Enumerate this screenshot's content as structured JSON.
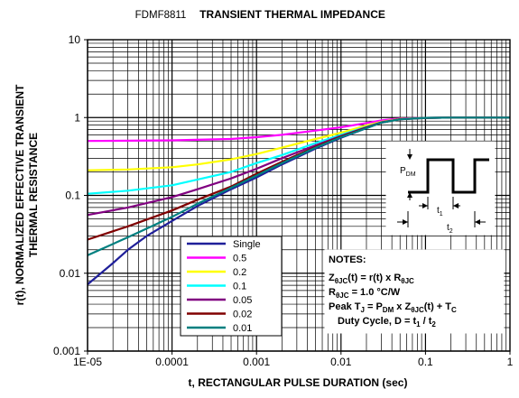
{
  "chart_data": {
    "type": "line",
    "title_part_number": "FDMF8811",
    "title": "TRANSIENT THERMAL IMPEDANCE",
    "xlabel": "t, RECTANGULAR PULSE DURATION (sec)",
    "ylabel_line1": "r(t), NORMALIZED EFFECTIVE TRANSIENT",
    "ylabel_line2": "THERMAL RESISTANCE",
    "x_scale": "log",
    "y_scale": "log",
    "xlim": [
      1e-05,
      1
    ],
    "ylim": [
      0.001,
      10
    ],
    "grid": true,
    "x_ticks": [
      {
        "value": 1e-05,
        "label": "1E-05"
      },
      {
        "value": 0.0001,
        "label": "0.0001"
      },
      {
        "value": 0.001,
        "label": "0.001"
      },
      {
        "value": 0.01,
        "label": "0.01"
      },
      {
        "value": 0.1,
        "label": "0.1"
      },
      {
        "value": 1,
        "label": "1"
      }
    ],
    "y_ticks": [
      {
        "value": 0.001,
        "label": "0.001"
      },
      {
        "value": 0.01,
        "label": "0.01"
      },
      {
        "value": 0.1,
        "label": "0.1"
      },
      {
        "value": 1,
        "label": "1"
      },
      {
        "value": 10,
        "label": "10"
      }
    ],
    "legend_position": "bottom-center",
    "series": [
      {
        "name": "Single",
        "color": "#1f1f99",
        "points": [
          [
            1e-05,
            0.0072
          ],
          [
            2e-05,
            0.0135
          ],
          [
            3e-05,
            0.02
          ],
          [
            5e-05,
            0.03
          ],
          [
            0.0001,
            0.047
          ],
          [
            0.0002,
            0.073
          ],
          [
            0.0005,
            0.12
          ],
          [
            0.001,
            0.17
          ],
          [
            0.002,
            0.25
          ],
          [
            0.005,
            0.4
          ],
          [
            0.01,
            0.55
          ],
          [
            0.02,
            0.73
          ],
          [
            0.03,
            0.86
          ],
          [
            0.05,
            0.96
          ],
          [
            0.1,
            0.99
          ],
          [
            0.2,
            1.0
          ],
          [
            1,
            1.0
          ]
        ]
      },
      {
        "name": "0.5",
        "color": "#ff00ff",
        "points": [
          [
            1e-05,
            0.5
          ],
          [
            0.0001,
            0.51
          ],
          [
            0.0005,
            0.53
          ],
          [
            0.001,
            0.56
          ],
          [
            0.002,
            0.6
          ],
          [
            0.005,
            0.68
          ],
          [
            0.01,
            0.75
          ],
          [
            0.02,
            0.85
          ],
          [
            0.03,
            0.92
          ],
          [
            0.05,
            0.97
          ],
          [
            0.1,
            0.99
          ],
          [
            0.2,
            1.0
          ],
          [
            1,
            1.0
          ]
        ]
      },
      {
        "name": "0.2",
        "color": "#ffff00",
        "points": [
          [
            1e-05,
            0.21
          ],
          [
            3e-05,
            0.215
          ],
          [
            0.0001,
            0.23
          ],
          [
            0.0002,
            0.25
          ],
          [
            0.0005,
            0.29
          ],
          [
            0.001,
            0.34
          ],
          [
            0.002,
            0.41
          ],
          [
            0.005,
            0.53
          ],
          [
            0.01,
            0.64
          ],
          [
            0.02,
            0.79
          ],
          [
            0.03,
            0.88
          ],
          [
            0.05,
            0.96
          ],
          [
            0.1,
            0.99
          ],
          [
            0.2,
            1.0
          ],
          [
            1,
            1.0
          ]
        ]
      },
      {
        "name": "0.1",
        "color": "#00ffff",
        "points": [
          [
            1e-05,
            0.105
          ],
          [
            3e-05,
            0.115
          ],
          [
            0.0001,
            0.135
          ],
          [
            0.0002,
            0.16
          ],
          [
            0.0005,
            0.2
          ],
          [
            0.001,
            0.26
          ],
          [
            0.002,
            0.33
          ],
          [
            0.005,
            0.47
          ],
          [
            0.01,
            0.6
          ],
          [
            0.02,
            0.76
          ],
          [
            0.03,
            0.87
          ],
          [
            0.05,
            0.95
          ],
          [
            0.1,
            0.99
          ],
          [
            0.2,
            1.0
          ],
          [
            1,
            1.0
          ]
        ]
      },
      {
        "name": "0.05",
        "color": "#800080",
        "points": [
          [
            1e-05,
            0.056
          ],
          [
            3e-05,
            0.07
          ],
          [
            0.0001,
            0.095
          ],
          [
            0.0002,
            0.12
          ],
          [
            0.0005,
            0.165
          ],
          [
            0.001,
            0.22
          ],
          [
            0.002,
            0.3
          ],
          [
            0.005,
            0.44
          ],
          [
            0.01,
            0.58
          ],
          [
            0.02,
            0.75
          ],
          [
            0.03,
            0.87
          ],
          [
            0.05,
            0.95
          ],
          [
            0.1,
            0.99
          ],
          [
            0.2,
            1.0
          ],
          [
            1,
            1.0
          ]
        ]
      },
      {
        "name": "0.02",
        "color": "#800000",
        "points": [
          [
            1e-05,
            0.027
          ],
          [
            3e-05,
            0.04
          ],
          [
            0.0001,
            0.064
          ],
          [
            0.0002,
            0.088
          ],
          [
            0.0005,
            0.13
          ],
          [
            0.001,
            0.19
          ],
          [
            0.002,
            0.27
          ],
          [
            0.005,
            0.42
          ],
          [
            0.01,
            0.57
          ],
          [
            0.02,
            0.74
          ],
          [
            0.03,
            0.86
          ],
          [
            0.05,
            0.95
          ],
          [
            0.1,
            0.99
          ],
          [
            0.2,
            1.0
          ],
          [
            1,
            1.0
          ]
        ]
      },
      {
        "name": "0.01",
        "color": "#008080",
        "points": [
          [
            1e-05,
            0.017
          ],
          [
            3e-05,
            0.029
          ],
          [
            0.0001,
            0.053
          ],
          [
            0.0002,
            0.078
          ],
          [
            0.0005,
            0.125
          ],
          [
            0.001,
            0.18
          ],
          [
            0.002,
            0.26
          ],
          [
            0.005,
            0.41
          ],
          [
            0.01,
            0.56
          ],
          [
            0.02,
            0.73
          ],
          [
            0.03,
            0.86
          ],
          [
            0.05,
            0.95
          ],
          [
            0.1,
            0.99
          ],
          [
            0.2,
            1.0
          ],
          [
            1,
            1.0
          ]
        ]
      }
    ]
  },
  "notes": {
    "heading": "NOTES:",
    "line1_a": "Z",
    "line1_a_sub": "θJC",
    "line1_b": "(t) = r(t) x R",
    "line1_b_sub": "θJC",
    "line2_a": "R",
    "line2_a_sub": "θJC",
    "line2_b": " = 1.0 °C/W",
    "line3_a": "Peak T",
    "line3_a_sub": "J",
    "line3_b": " = P",
    "line3_b_sub": "DM",
    "line3_c": " x Z",
    "line3_c_sub": "θJC",
    "line3_d": "(t) + T",
    "line3_d_sub": "C",
    "line4_a": "Duty Cycle, D = t",
    "line4_a_sub": "1",
    "line4_b": " / t",
    "line4_b_sub": "2"
  },
  "inset": {
    "pdm_main": "P",
    "pdm_sub": "DM",
    "t1_main": "t",
    "t1_sub": "1",
    "t2_main": "t",
    "t2_sub": "2"
  }
}
